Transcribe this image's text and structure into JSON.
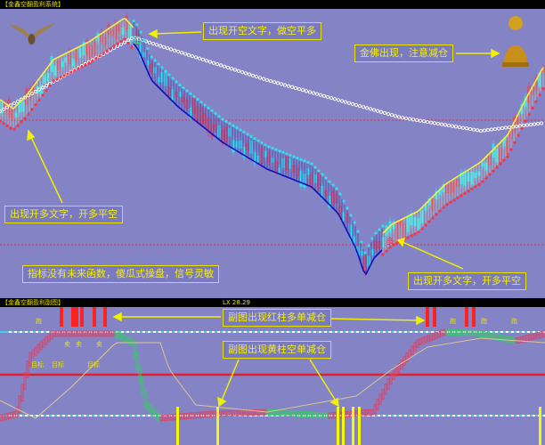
{
  "main_panel": {
    "title": "【金鑫空翻盈利系统】",
    "dropdown_icon": "chevron-down-icon"
  },
  "sub_panel": {
    "title": "【金鑫空翻盈利副图】",
    "dropdown_icon": "chevron-down-icon",
    "readout": "LX 28.29"
  },
  "annotations": [
    {
      "text": "出现开空文字，做空平多"
    },
    {
      "text": "金佛出现，注意减仓"
    },
    {
      "text": "出现开多文字，开多平空"
    },
    {
      "text": "指标没有未来函数，傻瓜式操盘，信号灵敏"
    },
    {
      "text": "出现开多文字，开多平空"
    },
    {
      "text": "副图出现红柱多单减仓"
    },
    {
      "text": "副图出现黄柱空单减仓"
    }
  ],
  "sub_labels": [
    "跑",
    "卖",
    "卖",
    "卖",
    "目标",
    "目标",
    "目标",
    "跑",
    "跑",
    "跑"
  ],
  "signals": {
    "sell": "空",
    "buy": "多"
  },
  "chart_data": {
    "type": "candlestick",
    "title": "",
    "grid": false,
    "colors": {
      "background": "#8383c6",
      "up": "#ff3040",
      "down": "#30e0f0",
      "ma_up": "#f0f040",
      "ma_down": "#1010c0",
      "long_ma": "#ffffff",
      "support": "#ff2020",
      "annotation": "#f0f000"
    }
  }
}
